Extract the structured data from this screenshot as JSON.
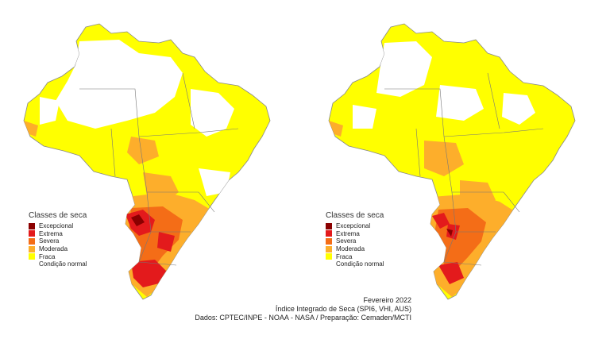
{
  "legend": {
    "title": "Classes de seca",
    "classes": [
      {
        "label": "Excepcional",
        "color": "#8b0000"
      },
      {
        "label": "Extrema",
        "color": "#e31a1c"
      },
      {
        "label": "Severa",
        "color": "#f46d17"
      },
      {
        "label": "Moderada",
        "color": "#fdae2b"
      },
      {
        "label": "Fraca",
        "color": "#ffff00"
      },
      {
        "label": "Condição normal",
        "color": "#ffffff"
      }
    ]
  },
  "caption": {
    "date": "Fevereiro 2022",
    "index": "Índice Integrado de Seca (SPI6, VHI, AUS)",
    "source": "Dados: CPTEC/INPE - NOAA - NASA / Preparação: Cemaden/MCTI"
  }
}
